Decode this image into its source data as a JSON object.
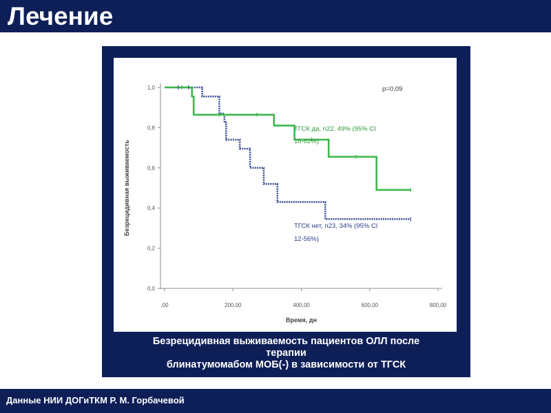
{
  "slide": {
    "title": "Лечение",
    "caption_lines": [
      "Безрецидивная выживаемость пациентов ОЛЛ после",
      "терапии",
      "блинатумомабом МОБ(-) в зависимости от ТГСК"
    ],
    "footer": "Данные НИИ ДОГиТКМ Р. М. Горбачевой"
  },
  "colors": {
    "bar": "#0e1f58",
    "series_yes": "#3cb84a",
    "series_no": "#3a4f96",
    "label_yes": "#2e9a38",
    "label_no": "#2a3f8a"
  },
  "chart_data": {
    "type": "line",
    "step": true,
    "xlabel": "Время, дн",
    "ylabel": "Безрецидивная выживаемость",
    "xlim": [
      0,
      800
    ],
    "ylim": [
      0,
      1.0
    ],
    "xticks": [
      {
        "value": 0,
        "label": ",00"
      },
      {
        "value": 200,
        "label": "200,00"
      },
      {
        "value": 400,
        "label": "400,00"
      },
      {
        "value": 600,
        "label": "600,00"
      },
      {
        "value": 800,
        "label": "800,00"
      }
    ],
    "yticks": [
      {
        "value": 0,
        "label": "0,0"
      },
      {
        "value": 0.2,
        "label": "0,2"
      },
      {
        "value": 0.4,
        "label": "0,4"
      },
      {
        "value": 0.6,
        "label": "0,6"
      },
      {
        "value": 0.8,
        "label": "0,8"
      },
      {
        "value": 1.0,
        "label": "1,0"
      }
    ],
    "grid": false,
    "annotation": "p=0.09",
    "series": [
      {
        "name_lines": [
          "ТГСК да, n22, 49% (95% CI",
          "16-82%)"
        ],
        "style": "solid",
        "x": [
          0,
          80,
          85,
          320,
          380,
          480,
          620,
          720
        ],
        "y": [
          1.0,
          0.955,
          0.864,
          0.81,
          0.74,
          0.655,
          0.49,
          0.49
        ],
        "censored": [
          [
            50,
            1.0
          ],
          [
            160,
            0.864
          ],
          [
            270,
            0.864
          ],
          [
            430,
            0.74
          ],
          [
            560,
            0.655
          ],
          [
            720,
            0.49
          ]
        ]
      },
      {
        "name_lines": [
          "ТГСК нет, n23, 34% (95% CI",
          "12-56%)"
        ],
        "style": "dotted",
        "x": [
          0,
          110,
          160,
          175,
          180,
          220,
          250,
          290,
          330,
          470,
          720
        ],
        "y": [
          1.0,
          0.955,
          0.87,
          0.826,
          0.74,
          0.695,
          0.6,
          0.52,
          0.43,
          0.345,
          0.345
        ],
        "censored": [
          [
            40,
            1.0
          ],
          [
            70,
            1.0
          ],
          [
            720,
            0.345
          ]
        ]
      }
    ]
  }
}
